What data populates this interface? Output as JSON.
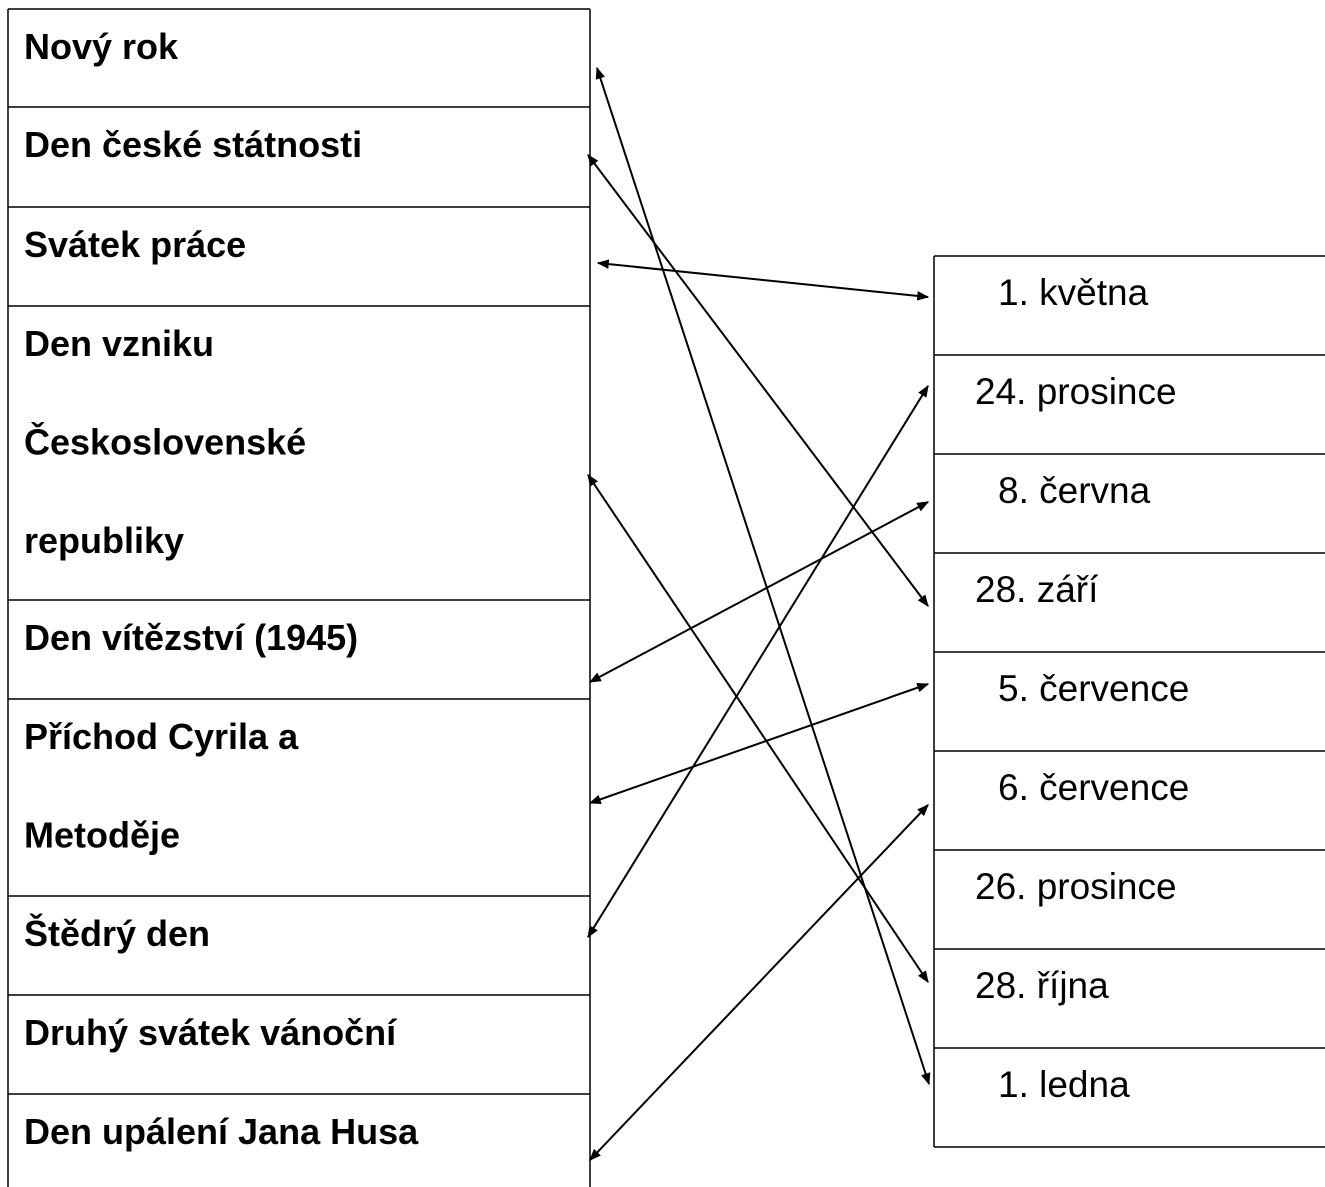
{
  "left": [
    [
      "Nový rok"
    ],
    [
      "Den české státnosti"
    ],
    [
      "Svátek práce"
    ],
    [
      "Den vzniku",
      "Československé",
      "republiky"
    ],
    [
      "Den vítězství (1945)"
    ],
    [
      "Příchod Cyrila a",
      "Metoděje"
    ],
    [
      "Štědrý den"
    ],
    [
      "Druhý svátek vánoční"
    ],
    [
      "Den upálení Jana Husa"
    ]
  ],
  "right": [
    "1. května",
    "24. prosince",
    "8. června",
    "28. září",
    "5. července",
    "6. července",
    "26. prosince",
    "28. října",
    "1. ledna"
  ]
}
